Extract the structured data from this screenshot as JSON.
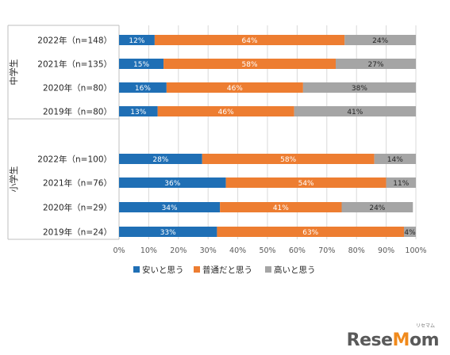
{
  "chart_data": {
    "type": "bar",
    "stacked": true,
    "orientation": "horizontal",
    "groups": [
      {
        "label": "中学生",
        "rows": [
          {
            "label": "2022年（n=148）",
            "values": [
              12,
              64,
              24
            ]
          },
          {
            "label": "2021年（n=135）",
            "values": [
              15,
              58,
              27
            ]
          },
          {
            "label": "2020年（n=80）",
            "values": [
              16,
              46,
              38
            ]
          },
          {
            "label": "2019年（n=80）",
            "values": [
              13,
              46,
              41
            ]
          }
        ]
      },
      {
        "label": "小学生",
        "rows": [
          {
            "label": "2022年（n=100）",
            "values": [
              28,
              58,
              14
            ]
          },
          {
            "label": "2021年（n=76）",
            "values": [
              36,
              54,
              11
            ]
          },
          {
            "label": "2020年（n=29）",
            "values": [
              34,
              41,
              24
            ]
          },
          {
            "label": "2019年（n=24）",
            "values": [
              33,
              63,
              4
            ]
          }
        ]
      }
    ],
    "series": [
      {
        "name": "安いと思う",
        "color": "#1f6fb5"
      },
      {
        "name": "普通だと思う",
        "color": "#ed7d31"
      },
      {
        "name": "高いと思う",
        "color": "#a5a5a5"
      }
    ],
    "xlim": [
      0,
      100
    ],
    "x_ticks": [
      "0%",
      "10%",
      "20%",
      "30%",
      "40%",
      "50%",
      "60%",
      "70%",
      "80%",
      "90%",
      "100%"
    ],
    "grid": true,
    "legend_position": "bottom"
  },
  "watermark": {
    "main_pre": "Rese",
    "main_o": "M",
    "main_post": "om",
    "sub": "リセマム"
  }
}
